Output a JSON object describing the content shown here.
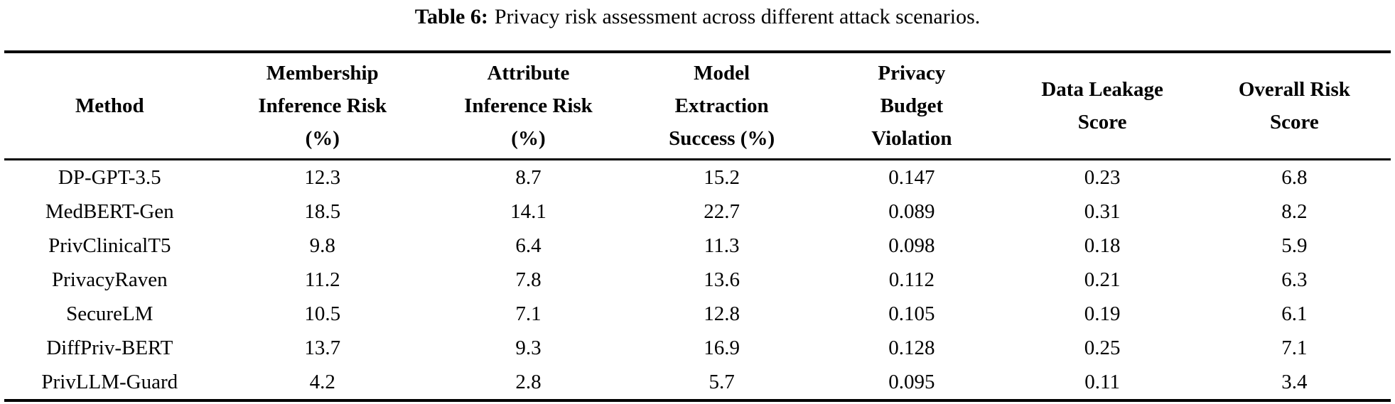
{
  "caption": {
    "label": "Table 6:",
    "text": "Privacy risk assessment across different attack scenarios."
  },
  "table": {
    "columns": [
      {
        "id": "method",
        "lines": [
          "Method"
        ]
      },
      {
        "id": "membership-inference-risk",
        "lines": [
          "Membership",
          "Inference Risk",
          "(%)"
        ]
      },
      {
        "id": "attribute-inference-risk",
        "lines": [
          "Attribute",
          "Inference Risk",
          "(%)"
        ]
      },
      {
        "id": "model-extraction-success",
        "lines": [
          "Model",
          "Extraction",
          "Success (%)"
        ]
      },
      {
        "id": "privacy-budget-violation",
        "lines": [
          "Privacy",
          "Budget",
          "Violation"
        ]
      },
      {
        "id": "data-leakage-score",
        "lines": [
          "Data Leakage",
          "Score"
        ]
      },
      {
        "id": "overall-risk-score",
        "lines": [
          "Overall Risk",
          "Score"
        ]
      }
    ],
    "rows": [
      {
        "method": "DP-GPT-3.5",
        "values": [
          "12.3",
          "8.7",
          "15.2",
          "0.147",
          "0.23",
          "6.8"
        ]
      },
      {
        "method": "MedBERT-Gen",
        "values": [
          "18.5",
          "14.1",
          "22.7",
          "0.089",
          "0.31",
          "8.2"
        ]
      },
      {
        "method": "PrivClinicalT5",
        "values": [
          "9.8",
          "6.4",
          "11.3",
          "0.098",
          "0.18",
          "5.9"
        ]
      },
      {
        "method": "PrivacyRaven",
        "values": [
          "11.2",
          "7.8",
          "13.6",
          "0.112",
          "0.21",
          "6.3"
        ]
      },
      {
        "method": "SecureLM",
        "values": [
          "10.5",
          "7.1",
          "12.8",
          "0.105",
          "0.19",
          "6.1"
        ]
      },
      {
        "method": "DiffPriv-BERT",
        "values": [
          "13.7",
          "9.3",
          "16.9",
          "0.128",
          "0.25",
          "7.1"
        ]
      },
      {
        "method": "PrivLLM-Guard",
        "values": [
          "4.2",
          "2.8",
          "5.7",
          "0.095",
          "0.11",
          "3.4"
        ]
      }
    ]
  },
  "colors": {
    "text": "#000000",
    "background": "#ffffff",
    "rule": "#000000"
  }
}
